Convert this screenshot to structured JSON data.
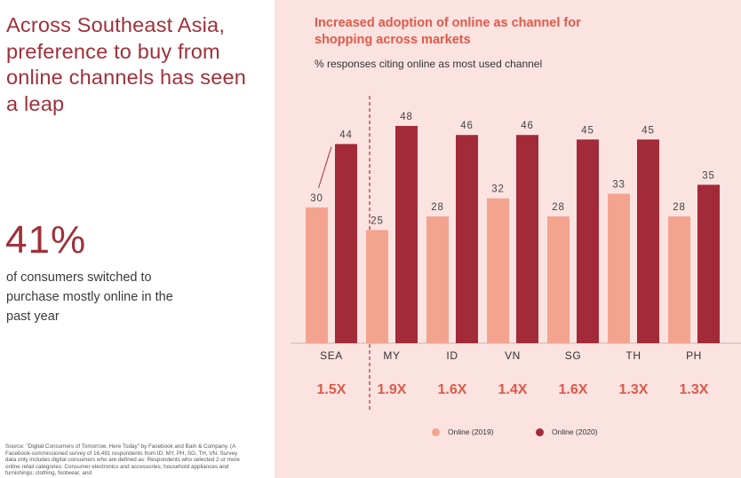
{
  "headline": "Across Southeast Asia, preference to buy from online channels has seen a leap",
  "stat": {
    "value": "41%",
    "description": "of consumers switched to purchase mostly online in the past year"
  },
  "source": "Source: \"Digital Consumers of Tomorrow, Here Today\" by Facebook and Bain & Company. (A Facebook-commissioned survey of 16,491 respondents from ID, MY, PH, SG, TH, VN. Survey data only includes digital consumers who are defined as: Respondents who selected 2 or more online retail categories: Consumer electronics and accessories; household appliances and furnishings; clothing, footwear, and",
  "colors": {
    "accent": "#a0303a",
    "title": "#df5a48",
    "panel_bg": "#fbe3e1",
    "online_2019": "#f4a38e",
    "online_2020": "#a32a38"
  },
  "chart_data": {
    "type": "bar",
    "title": "Increased adoption of online as channel for shopping across markets",
    "subtitle": "% responses citing online as most used channel",
    "categories": [
      "SEA",
      "MY",
      "ID",
      "VN",
      "SG",
      "TH",
      "PH"
    ],
    "series": [
      {
        "name": "Online (2019)",
        "values": [
          30,
          25,
          28,
          32,
          28,
          33,
          28
        ]
      },
      {
        "name": "Online (2020)",
        "values": [
          44,
          48,
          46,
          46,
          45,
          45,
          35
        ]
      }
    ],
    "multipliers": [
      "1.5X",
      "1.9X",
      "1.6X",
      "1.4X",
      "1.6X",
      "1.3X",
      "1.3X"
    ],
    "ylim": [
      0,
      48
    ],
    "xlabel": "",
    "ylabel": "",
    "legend": "bottom-center"
  }
}
